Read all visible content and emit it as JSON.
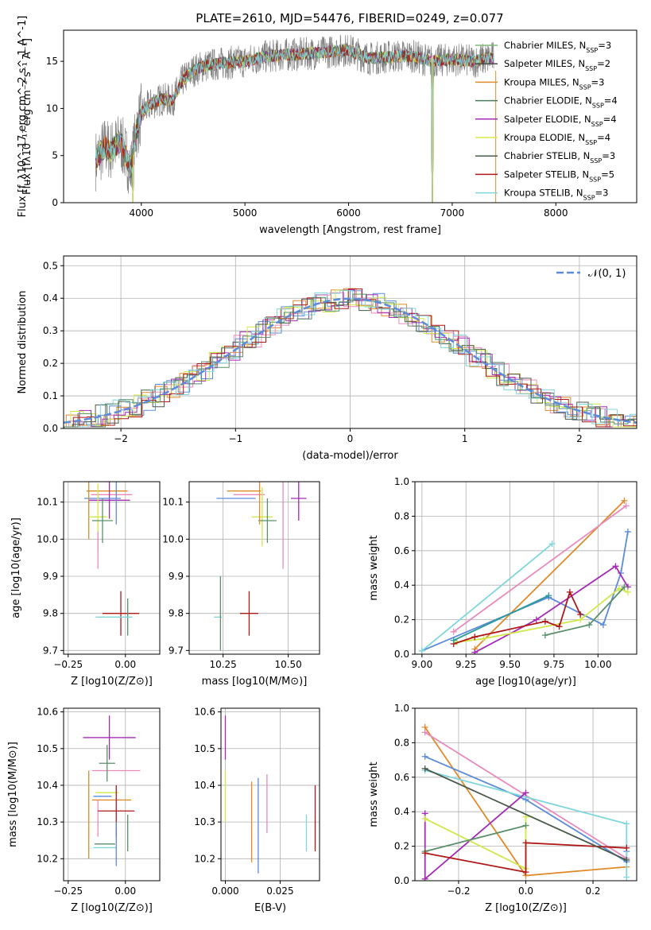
{
  "title": "PLATE=2610, MJD=54476, FIBERID=0249, z=0.077",
  "colors": [
    "#808080",
    "#d1ca0b",
    "#e87f1a",
    "#5a8f6a",
    "#a32cb5",
    "#cfe84a",
    "#4a5a4a",
    "#b01818",
    "#7fd6dc",
    "#6a8ad4",
    "#e98abb"
  ],
  "chart_data": [
    {
      "id": "spectrum",
      "type": "line",
      "xlabel": "wavelength [Angstrom, rest frame]",
      "ylabel": "Flux [f_λ10^-17 erg cm^-2 s^-1 A^-1]",
      "xlim": [
        3250,
        8780
      ],
      "ylim": [
        0,
        18.3
      ],
      "xticks": [
        4000,
        5000,
        6000,
        7000,
        8000
      ],
      "yticks": [
        0,
        5,
        10,
        15
      ],
      "grid": false,
      "legend_position": "right",
      "series": [
        {
          "name": "Chabrier MILES, N_SSP=3",
          "color": "#7cb87c"
        },
        {
          "name": "Salpeter MILES, N_SSP=2",
          "color": "#4a4a4a"
        },
        {
          "name": "Kroupa MILES, N_SSP=3",
          "color": "#e08a2a"
        },
        {
          "name": "Chabrier ELODIE, N_SSP=4",
          "color": "#4a7a5a"
        },
        {
          "name": "Salpeter ELODIE, N_SSP=4",
          "color": "#a42bb5"
        },
        {
          "name": "Kroupa ELODIE, N_SSP=4",
          "color": "#d8e84a"
        },
        {
          "name": "Chabrier STELIB, N_SSP=3",
          "color": "#4a5a4a"
        },
        {
          "name": "Salpeter STELIB, N_SSP=5",
          "color": "#b01818"
        },
        {
          "name": "Kroupa STELIB, N_SSP=3",
          "color": "#7fd6dc"
        }
      ],
      "continuum": {
        "x": [
          3560,
          3650,
          3700,
          3800,
          3900,
          3950,
          4000,
          4100,
          4200,
          4300,
          4400,
          4500,
          4600,
          4800,
          5000,
          5200,
          5400,
          5600,
          5800,
          6000,
          6200,
          6400,
          6600,
          6800,
          7000,
          7200,
          7400
        ],
        "y": [
          4.5,
          6.0,
          5.5,
          6.5,
          3.5,
          7.5,
          9.5,
          10.5,
          11.0,
          10.8,
          13.0,
          14.0,
          14.5,
          14.8,
          15.0,
          15.5,
          15.7,
          15.8,
          16.0,
          16.2,
          15.3,
          15.5,
          15.6,
          15.0,
          15.2,
          15.0,
          15.4
        ]
      },
      "dropouts": [
        3920,
        6810,
        7420
      ]
    },
    {
      "id": "residual-histogram",
      "type": "bar",
      "xlabel": "(data-model)/error",
      "ylabel": "Normed distribution",
      "xlim": [
        -2.5,
        2.5
      ],
      "ylim": [
        0,
        0.53
      ],
      "xticks": [
        -2,
        -1,
        0,
        1,
        2
      ],
      "yticks": [
        0.0,
        0.1,
        0.2,
        0.3,
        0.4,
        0.5
      ],
      "grid": true,
      "legend": [
        {
          "name": "𝒩(0, 1)",
          "style": "dashed",
          "color": "#5b8bd9"
        }
      ],
      "legend_position": "top-right"
    },
    {
      "id": "age-vs-Z",
      "type": "scatter",
      "xlabel": "Z [log10(Z/Z⊙)]",
      "ylabel": "age [log10(age/yr)]",
      "xlim": [
        -0.27,
        0.15
      ],
      "ylim": [
        9.69,
        10.155
      ],
      "xticks": [
        -0.25,
        0.0
      ],
      "yticks": [
        9.7,
        9.8,
        9.9,
        10.0,
        10.1
      ],
      "grid": true,
      "points": [
        {
          "x": -0.08,
          "y": 10.13,
          "xerr": 0.18,
          "yerr": 0.0,
          "c": "#e08a2a"
        },
        {
          "x": -0.06,
          "y": 10.12,
          "xerr": 0.18,
          "yerr": 0.0,
          "c": "#e98abb"
        },
        {
          "x": -0.07,
          "y": 10.105,
          "xerr": 0.18,
          "yerr": 0.05,
          "c": "#a42bb5"
        },
        {
          "x": -0.1,
          "y": 10.11,
          "xerr": 0.16,
          "yerr": 0.0,
          "c": "#5b8bd9"
        },
        {
          "x": -0.16,
          "y": 10.1,
          "xerr": 0.0,
          "yerr": 0.1,
          "c": "#e08a2a"
        },
        {
          "x": -0.12,
          "y": 10.06,
          "xerr": 0.08,
          "yerr": 0.09,
          "c": "#cfe84a"
        },
        {
          "x": -0.1,
          "y": 10.05,
          "xerr": 0.09,
          "yerr": 0.06,
          "c": "#5a8f6a"
        },
        {
          "x": -0.04,
          "y": 10.1,
          "xerr": 0.0,
          "yerr": 0.06,
          "c": "#5b8bd9"
        },
        {
          "x": -0.12,
          "y": 9.97,
          "xerr": 0.0,
          "yerr": 0.05,
          "c": "#e98abb"
        },
        {
          "x": -0.02,
          "y": 9.8,
          "xerr": 0.16,
          "yerr": 0.06,
          "c": "#b01818"
        },
        {
          "x": 0.01,
          "y": 9.79,
          "xerr": 0.0,
          "yerr": 0.05,
          "c": "#5a8f6a"
        },
        {
          "x": -0.05,
          "y": 9.79,
          "xerr": 0.16,
          "yerr": 0.0,
          "c": "#7fd6dc"
        }
      ]
    },
    {
      "id": "age-vs-mass",
      "type": "scatter",
      "xlabel": "mass [log10(M/M⊙)]",
      "ylabel": "",
      "xlim": [
        10.12,
        10.62
      ],
      "ylim": [
        9.69,
        10.155
      ],
      "xticks": [
        10.25,
        10.5
      ],
      "yticks": [
        9.7,
        9.8,
        9.9,
        10.0,
        10.1
      ],
      "grid": true,
      "points": [
        {
          "x": 10.33,
          "y": 10.13,
          "xerr": 0.13,
          "yerr": 0.0,
          "c": "#e08a2a"
        },
        {
          "x": 10.35,
          "y": 10.12,
          "xerr": 0.12,
          "yerr": 0.0,
          "c": "#e98abb"
        },
        {
          "x": 10.54,
          "y": 10.11,
          "xerr": 0.06,
          "yerr": 0.06,
          "c": "#a42bb5"
        },
        {
          "x": 10.3,
          "y": 10.11,
          "xerr": 0.15,
          "yerr": 0.0,
          "c": "#5b8bd9"
        },
        {
          "x": 10.4,
          "y": 10.06,
          "xerr": 0.08,
          "yerr": 0.08,
          "c": "#cfe84a"
        },
        {
          "x": 10.42,
          "y": 10.05,
          "xerr": 0.07,
          "yerr": 0.06,
          "c": "#5a8f6a"
        },
        {
          "x": 10.39,
          "y": 10.1,
          "xerr": 0.0,
          "yerr": 0.06,
          "c": "#e08a2a"
        },
        {
          "x": 10.48,
          "y": 10.04,
          "xerr": 0.0,
          "yerr": 0.12,
          "c": "#e98abb"
        },
        {
          "x": 10.35,
          "y": 9.8,
          "xerr": 0.07,
          "yerr": 0.06,
          "c": "#b01818"
        },
        {
          "x": 10.23,
          "y": 9.79,
          "xerr": 0.03,
          "yerr": 0.0,
          "c": "#7fd6dc"
        },
        {
          "x": 10.24,
          "y": 9.8,
          "xerr": 0.0,
          "yerr": 0.1,
          "c": "#5a8f6a"
        }
      ]
    },
    {
      "id": "weight-vs-age",
      "type": "line",
      "xlabel": "age [log10(age/yr)]",
      "ylabel": "mass weight",
      "xlim": [
        8.96,
        10.22
      ],
      "ylim": [
        0,
        1.0
      ],
      "xticks": [
        9.0,
        9.25,
        9.5,
        9.75,
        10.0
      ],
      "yticks": [
        0.0,
        0.2,
        0.4,
        0.6,
        0.8,
        1.0
      ],
      "grid": true,
      "series": [
        {
          "c": "#e08a2a",
          "x": [
            9.3,
            10.15
          ],
          "y": [
            0.03,
            0.89
          ]
        },
        {
          "c": "#e98abb",
          "x": [
            9.18,
            10.16
          ],
          "y": [
            0.13,
            0.86
          ]
        },
        {
          "c": "#5b8bd9",
          "x": [
            9.0,
            9.72,
            10.03,
            10.13,
            10.17
          ],
          "y": [
            0.02,
            0.33,
            0.17,
            0.47,
            0.71
          ]
        },
        {
          "c": "#7fd6dc",
          "x": [
            9.0,
            9.74
          ],
          "y": [
            0.02,
            0.64
          ]
        },
        {
          "c": "#a42bb5",
          "x": [
            9.3,
            9.65,
            10.1,
            10.17
          ],
          "y": [
            0.01,
            0.2,
            0.51,
            0.39
          ]
        },
        {
          "c": "#cfe84a",
          "x": [
            9.2,
            9.35,
            9.9,
            10.12,
            10.17
          ],
          "y": [
            0.07,
            0.09,
            0.2,
            0.38,
            0.36
          ]
        },
        {
          "c": "#5a8f6a",
          "x": [
            9.7,
            9.95,
            10.15
          ],
          "y": [
            0.11,
            0.17,
            0.39
          ]
        },
        {
          "c": "#b01818",
          "x": [
            9.18,
            9.3,
            9.7,
            9.78,
            9.84,
            9.9
          ],
          "y": [
            0.06,
            0.1,
            0.19,
            0.16,
            0.36,
            0.23
          ]
        },
        {
          "c": "#2a9a9a",
          "x": [
            9.18,
            9.72
          ],
          "y": [
            0.08,
            0.34
          ]
        }
      ]
    },
    {
      "id": "mass-vs-Z",
      "type": "scatter",
      "xlabel": "Z [log10(Z/Z⊙)]",
      "ylabel": "mass [log10(M/M⊙)]",
      "xlim": [
        -0.27,
        0.15
      ],
      "ylim": [
        10.14,
        10.61
      ],
      "xticks": [
        -0.25,
        0.0
      ],
      "yticks": [
        10.2,
        10.3,
        10.4,
        10.5,
        10.6
      ],
      "grid": true,
      "points": [
        {
          "x": -0.07,
          "y": 10.53,
          "xerr": 0.23,
          "yerr": 0.06,
          "c": "#a42bb5"
        },
        {
          "x": -0.04,
          "y": 10.44,
          "xerr": 0.21,
          "yerr": 0.0,
          "c": "#e98abb"
        },
        {
          "x": -0.08,
          "y": 10.46,
          "xerr": 0.07,
          "yerr": 0.05,
          "c": "#5a8f6a"
        },
        {
          "x": -0.08,
          "y": 10.38,
          "xerr": 0.1,
          "yerr": 0.0,
          "c": "#cfe84a"
        },
        {
          "x": -0.06,
          "y": 10.36,
          "xerr": 0.17,
          "yerr": 0.0,
          "c": "#e08a2a"
        },
        {
          "x": -0.1,
          "y": 10.37,
          "xerr": 0.08,
          "yerr": 0.0,
          "c": "#5b8bd9"
        },
        {
          "x": -0.16,
          "y": 10.32,
          "xerr": 0.0,
          "yerr": 0.12,
          "c": "#e08a2a"
        },
        {
          "x": -0.12,
          "y": 10.31,
          "xerr": 0.0,
          "yerr": 0.05,
          "c": "#e98abb"
        },
        {
          "x": -0.04,
          "y": 10.33,
          "xerr": 0.16,
          "yerr": 0.07,
          "c": "#b01818"
        },
        {
          "x": 0.01,
          "y": 10.27,
          "xerr": 0.0,
          "yerr": 0.05,
          "c": "#5a8f6a"
        },
        {
          "x": -0.09,
          "y": 10.24,
          "xerr": 0.09,
          "yerr": 0.0,
          "c": "#5a8f6a"
        },
        {
          "x": -0.09,
          "y": 10.23,
          "xerr": 0.1,
          "yerr": 0.0,
          "c": "#7fd6dc"
        },
        {
          "x": -0.04,
          "y": 10.24,
          "xerr": 0.0,
          "yerr": 0.06,
          "c": "#5b8bd9"
        }
      ]
    },
    {
      "id": "mass-vs-ebv",
      "type": "scatter",
      "xlabel": "E(B-V)",
      "ylabel": "",
      "xlim": [
        -0.002,
        0.043
      ],
      "ylim": [
        10.14,
        10.61
      ],
      "xticks": [
        0.0,
        0.025
      ],
      "yticks": [
        10.2,
        10.3,
        10.4,
        10.5,
        10.6
      ],
      "grid": true,
      "points": [
        {
          "x": 0.0,
          "y": 10.53,
          "xerr": 0.0,
          "yerr": 0.06,
          "c": "#a42bb5"
        },
        {
          "x": 0.0,
          "y": 10.37,
          "xerr": 0.0,
          "yerr": 0.07,
          "c": "#cfe84a"
        },
        {
          "x": 0.012,
          "y": 10.3,
          "xerr": 0.0,
          "yerr": 0.11,
          "c": "#e08a2a"
        },
        {
          "x": 0.015,
          "y": 10.29,
          "xerr": 0.0,
          "yerr": 0.13,
          "c": "#5b8bd9"
        },
        {
          "x": 0.019,
          "y": 10.35,
          "xerr": 0.0,
          "yerr": 0.08,
          "c": "#e98abb"
        },
        {
          "x": 0.037,
          "y": 10.27,
          "xerr": 0.0,
          "yerr": 0.05,
          "c": "#7fd6dc"
        },
        {
          "x": 0.041,
          "y": 10.31,
          "xerr": 0.0,
          "yerr": 0.09,
          "c": "#b01818"
        }
      ]
    },
    {
      "id": "weight-vs-Z",
      "type": "line",
      "xlabel": "Z [log10(Z/Z⊙)]",
      "ylabel": "mass weight",
      "xlim": [
        -0.33,
        0.33
      ],
      "ylim": [
        0,
        1.0
      ],
      "xticks": [
        -0.2,
        0.0,
        0.2
      ],
      "yticks": [
        0.0,
        0.2,
        0.4,
        0.6,
        0.8,
        1.0
      ],
      "grid": true,
      "series": [
        {
          "c": "#e08a2a",
          "x": [
            -0.3,
            0.0,
            0.3
          ],
          "y": [
            0.89,
            0.03,
            0.08
          ]
        },
        {
          "c": "#e98abb",
          "x": [
            -0.3,
            0.3
          ],
          "y": [
            0.86,
            0.13
          ]
        },
        {
          "c": "#5b8bd9",
          "x": [
            -0.3,
            0.0,
            0.3,
            0.3
          ],
          "y": [
            0.72,
            0.47,
            0.11,
            0.17
          ]
        },
        {
          "c": "#7fd6dc",
          "x": [
            -0.3,
            0.3,
            0.3
          ],
          "y": [
            0.64,
            0.33,
            0.02
          ]
        },
        {
          "c": "#a42bb5",
          "x": [
            -0.3,
            -0.3,
            0.0
          ],
          "y": [
            0.39,
            0.01,
            0.51
          ]
        },
        {
          "c": "#cfe84a",
          "x": [
            -0.3,
            0.0,
            0.0
          ],
          "y": [
            0.36,
            0.07,
            0.37
          ]
        },
        {
          "c": "#5a8f6a",
          "x": [
            -0.3,
            0.0
          ],
          "y": [
            0.17,
            0.32
          ]
        },
        {
          "c": "#b01818",
          "x": [
            -0.3,
            0.0,
            0.0,
            0.3
          ],
          "y": [
            0.16,
            0.05,
            0.22,
            0.19
          ]
        },
        {
          "c": "#4a5a4a",
          "x": [
            -0.3,
            0.3
          ],
          "y": [
            0.65,
            0.12
          ]
        }
      ]
    }
  ]
}
